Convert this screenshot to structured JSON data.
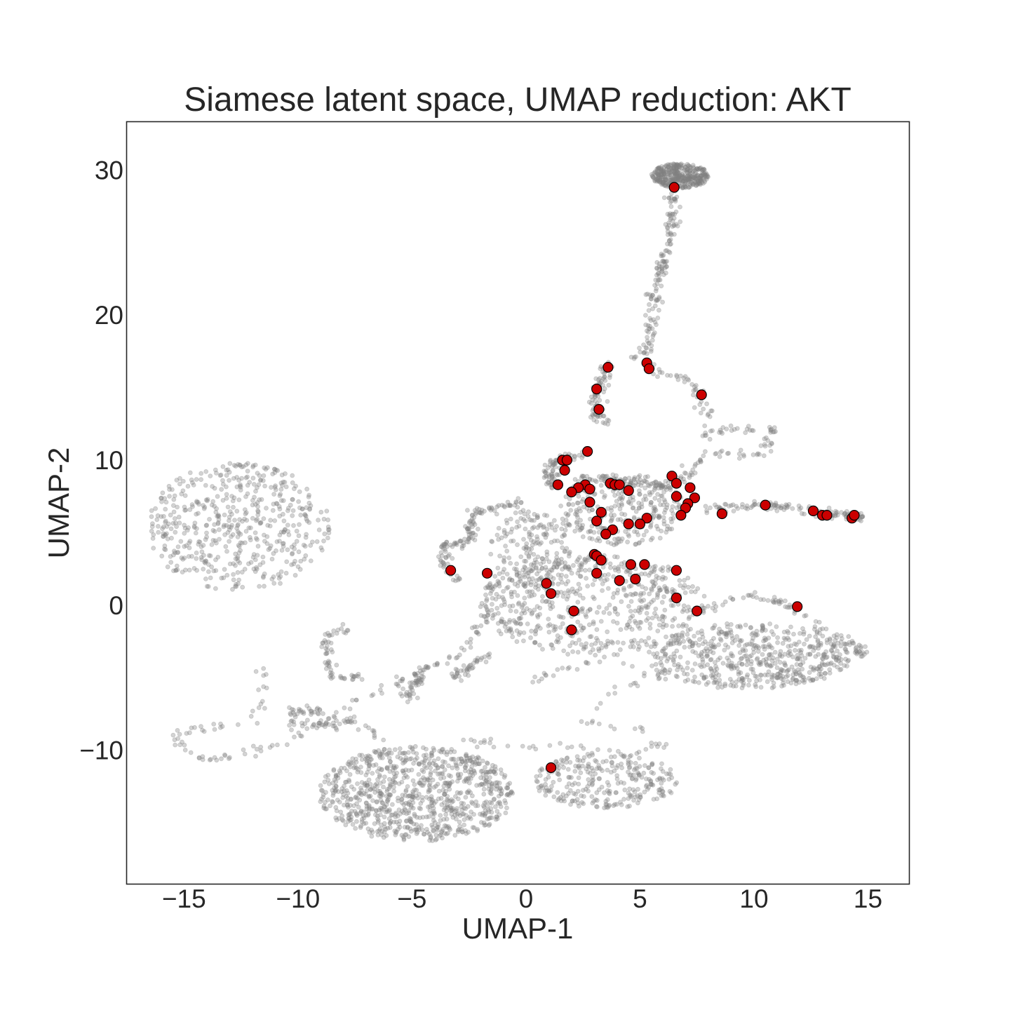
{
  "chart_data": {
    "type": "scatter",
    "title": "Siamese latent space, UMAP reduction: AKT",
    "xlabel": "UMAP-1",
    "ylabel": "UMAP-2",
    "xlim": [
      -17.5,
      16.8
    ],
    "ylim": [
      -19.2,
      33.3
    ],
    "xticks": [
      -15,
      -10,
      -5,
      0,
      5,
      10,
      15
    ],
    "yticks": [
      -10,
      0,
      10,
      20,
      30
    ],
    "grid": false,
    "background": {
      "name": "background",
      "color": "#808080",
      "opacity": 0.35,
      "regions": [
        {
          "kind": "blob",
          "cx": 6.8,
          "cy": 29.6,
          "rx": 1.3,
          "ry": 0.85,
          "n": 380
        },
        {
          "kind": "blob",
          "cx": -12.6,
          "cy": 5.4,
          "rx": 4.0,
          "ry": 4.4,
          "n": 520
        },
        {
          "kind": "blob",
          "cx": -4.8,
          "cy": -13.0,
          "rx": 4.3,
          "ry": 3.3,
          "n": 900
        },
        {
          "kind": "blob",
          "cx": 3.5,
          "cy": -12.1,
          "rx": 3.2,
          "ry": 1.9,
          "n": 280
        },
        {
          "kind": "blob",
          "cx": 3.0,
          "cy": 0.0,
          "rx": 5.0,
          "ry": 3.5,
          "n": 560
        },
        {
          "kind": "blob",
          "cx": 9.8,
          "cy": -3.5,
          "rx": 4.5,
          "ry": 2.3,
          "n": 520
        },
        {
          "kind": "blob",
          "cx": 4.2,
          "cy": 6.6,
          "rx": 2.8,
          "ry": 2.5,
          "n": 320
        },
        {
          "kind": "blob",
          "cx": 0.2,
          "cy": 3.6,
          "rx": 1.8,
          "ry": 3.0,
          "n": 200
        },
        {
          "kind": "path",
          "spread": 0.15,
          "n": 150,
          "points": [
            [
              6.5,
              28.5
            ],
            [
              6.3,
              25.2
            ],
            [
              5.7,
              22.0
            ],
            [
              5.5,
              19.0
            ],
            [
              5.2,
              17.3
            ]
          ]
        },
        {
          "kind": "path",
          "spread": 0.15,
          "n": 110,
          "points": [
            [
              4.6,
              17.2
            ],
            [
              5.8,
              16.1
            ],
            [
              7.3,
              15.3
            ],
            [
              7.8,
              13.8
            ],
            [
              7.8,
              11.8
            ],
            [
              8.8,
              12.2
            ],
            [
              10.8,
              12.0
            ],
            [
              10.4,
              10.4
            ],
            [
              8.3,
              10.4
            ]
          ]
        },
        {
          "kind": "path",
          "spread": 0.15,
          "n": 90,
          "points": [
            [
              8.0,
              10.5
            ],
            [
              7.2,
              9.3
            ],
            [
              6.3,
              8.2
            ],
            [
              4.5,
              8.6
            ],
            [
              2.4,
              8.8
            ]
          ]
        },
        {
          "kind": "path",
          "spread": 0.15,
          "n": 80,
          "points": [
            [
              3.6,
              16.5
            ],
            [
              3.1,
              14.8
            ],
            [
              3.0,
              13.3
            ],
            [
              3.7,
              12.3
            ]
          ]
        },
        {
          "kind": "path",
          "spread": 0.15,
          "n": 70,
          "points": [
            [
              2.6,
              10.4
            ],
            [
              1.6,
              10.2
            ],
            [
              1.0,
              9.3
            ],
            [
              1.1,
              8.0
            ]
          ]
        },
        {
          "kind": "path",
          "spread": 0.15,
          "n": 120,
          "points": [
            [
              7.2,
              6.6
            ],
            [
              9.5,
              6.8
            ],
            [
              11.6,
              6.8
            ],
            [
              13.4,
              6.3
            ],
            [
              14.9,
              6.1
            ]
          ]
        },
        {
          "kind": "path",
          "spread": 0.15,
          "n": 120,
          "points": [
            [
              7.5,
              -0.4
            ],
            [
              9.8,
              0.6
            ],
            [
              11.6,
              0.0
            ],
            [
              13.2,
              -1.9
            ],
            [
              14.3,
              -2.6
            ],
            [
              14.8,
              -3.4
            ],
            [
              13.8,
              -2.4
            ],
            [
              12.0,
              -5.3
            ],
            [
              10.3,
              -4.9
            ]
          ]
        },
        {
          "kind": "path",
          "spread": 0.15,
          "n": 90,
          "points": [
            [
              0.3,
              -5.2
            ],
            [
              3.2,
              -3.6
            ],
            [
              5.6,
              -4.9
            ],
            [
              6.2,
              -4.6
            ],
            [
              3.5,
              -6.3
            ],
            [
              2.6,
              -8.0
            ],
            [
              5.0,
              -8.6
            ],
            [
              6.0,
              -9.8
            ],
            [
              4.2,
              -10.4
            ],
            [
              1.7,
              -9.7
            ],
            [
              -0.4,
              -9.8
            ],
            [
              -2.8,
              -9.2
            ]
          ]
        },
        {
          "kind": "path",
          "spread": 0.15,
          "n": 130,
          "points": [
            [
              -0.2,
              7.2
            ],
            [
              -2.3,
              6.3
            ],
            [
              -2.5,
              4.3
            ],
            [
              -3.6,
              4.1
            ],
            [
              -3.6,
              2.5
            ],
            [
              -3.0,
              1.7
            ]
          ]
        },
        {
          "kind": "path",
          "spread": 0.15,
          "n": 140,
          "points": [
            [
              -1.7,
              2.1
            ],
            [
              -1.5,
              0.0
            ],
            [
              -2.7,
              -3.3
            ],
            [
              -5.0,
              -4.8
            ],
            [
              -7.6,
              -6.7
            ],
            [
              -10.8,
              -9.6
            ],
            [
              -13.2,
              -10.6
            ],
            [
              -15.0,
              -10.3
            ],
            [
              -15.3,
              -8.9
            ],
            [
              -14.2,
              -8.4
            ],
            [
              -12.1,
              -8.1
            ],
            [
              -11.5,
              -6.2
            ],
            [
              -11.6,
              -4.0
            ]
          ]
        },
        {
          "kind": "path",
          "spread": 0.15,
          "n": 80,
          "points": [
            [
              -8.6,
              -7.4
            ],
            [
              -10.1,
              -7.2
            ],
            [
              -10.1,
              -8.4
            ],
            [
              -7.1,
              -8.0
            ],
            [
              -6.4,
              -9.4
            ]
          ]
        },
        {
          "kind": "path",
          "spread": 0.15,
          "n": 60,
          "points": [
            [
              -7.7,
              -1.5
            ],
            [
              -8.7,
              -2.0
            ],
            [
              -8.7,
              -3.9
            ],
            [
              -8.5,
              -5.0
            ],
            [
              -7.2,
              -5.0
            ]
          ]
        },
        {
          "kind": "path",
          "spread": 0.15,
          "n": 50,
          "points": [
            [
              -5.2,
              -6.5
            ],
            [
              -4.7,
              -5.0
            ],
            [
              -4.5,
              -4.3
            ]
          ]
        },
        {
          "kind": "path",
          "spread": 0.15,
          "n": 40,
          "points": [
            [
              -3.2,
              -5.0
            ],
            [
              -2.2,
              -3.9
            ],
            [
              -1.5,
              -3.5
            ]
          ]
        }
      ]
    },
    "series": [
      {
        "name": "AKT",
        "color": "#cc0000",
        "edgecolor": "#000000",
        "points": [
          [
            6.5,
            28.8
          ],
          [
            3.6,
            16.4
          ],
          [
            5.3,
            16.7
          ],
          [
            5.4,
            16.3
          ],
          [
            3.1,
            14.9
          ],
          [
            7.7,
            14.5
          ],
          [
            3.2,
            13.5
          ],
          [
            2.7,
            10.6
          ],
          [
            1.6,
            10.0
          ],
          [
            1.8,
            10.0
          ],
          [
            1.7,
            9.3
          ],
          [
            6.4,
            8.9
          ],
          [
            1.4,
            8.3
          ],
          [
            2.6,
            8.3
          ],
          [
            3.7,
            8.4
          ],
          [
            3.9,
            8.3
          ],
          [
            4.1,
            8.3
          ],
          [
            2.3,
            8.1
          ],
          [
            2.8,
            8.0
          ],
          [
            4.5,
            7.9
          ],
          [
            6.6,
            8.4
          ],
          [
            7.2,
            8.1
          ],
          [
            2.0,
            7.8
          ],
          [
            6.6,
            7.5
          ],
          [
            7.4,
            7.4
          ],
          [
            2.8,
            7.1
          ],
          [
            7.1,
            7.0
          ],
          [
            7.0,
            6.7
          ],
          [
            3.3,
            6.4
          ],
          [
            8.6,
            6.3
          ],
          [
            6.8,
            6.2
          ],
          [
            10.5,
            6.9
          ],
          [
            12.6,
            6.5
          ],
          [
            13.0,
            6.2
          ],
          [
            13.2,
            6.2
          ],
          [
            14.3,
            6.0
          ],
          [
            14.4,
            6.2
          ],
          [
            5.3,
            6.0
          ],
          [
            3.1,
            5.8
          ],
          [
            4.5,
            5.6
          ],
          [
            5.0,
            5.6
          ],
          [
            3.8,
            5.2
          ],
          [
            3.5,
            4.9
          ],
          [
            3.0,
            3.5
          ],
          [
            3.1,
            3.4
          ],
          [
            3.3,
            3.1
          ],
          [
            4.6,
            2.8
          ],
          [
            5.2,
            2.8
          ],
          [
            6.6,
            2.4
          ],
          [
            -3.3,
            2.4
          ],
          [
            -1.7,
            2.2
          ],
          [
            3.1,
            2.2
          ],
          [
            4.8,
            1.8
          ],
          [
            4.1,
            1.7
          ],
          [
            0.9,
            1.5
          ],
          [
            1.1,
            0.8
          ],
          [
            6.6,
            0.5
          ],
          [
            2.1,
            -0.4
          ],
          [
            7.5,
            -0.4
          ],
          [
            11.9,
            -0.1
          ],
          [
            2.0,
            -1.7
          ],
          [
            1.1,
            -11.2
          ]
        ]
      }
    ]
  }
}
